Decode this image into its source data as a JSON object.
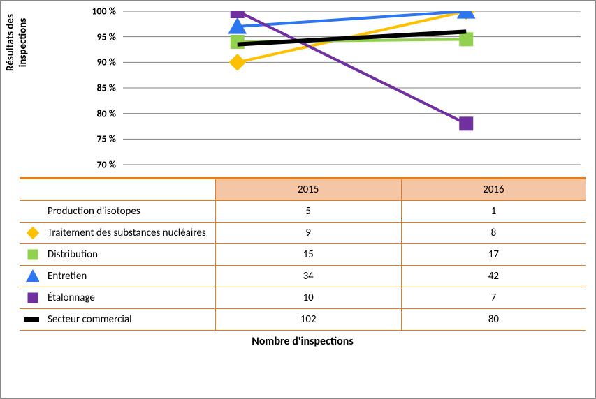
{
  "chart": {
    "type": "line+table",
    "y_axis_title": "Résultats des inspections",
    "x_caption": "Nombre d'inspections",
    "ylim": [
      70,
      100
    ],
    "ytick_step": 5,
    "yticks": [
      70,
      75,
      80,
      85,
      90,
      95,
      100
    ],
    "ytick_labels": [
      "70 %",
      "75 %",
      "80 %",
      "85 %",
      "90 %",
      "95 %",
      "100 %"
    ],
    "years": [
      "2015",
      "2016"
    ],
    "x_positions": [
      0.25,
      0.75
    ],
    "grid_color": "#808080",
    "background_color": "#ffffff",
    "border_color": "#888888",
    "line_width": 4,
    "marker_size": 16,
    "title_fontsize": 15,
    "tick_fontsize": 14
  },
  "series": [
    {
      "name": "Production d'isotopes",
      "label": "Production d'isotopes",
      "color": null,
      "marker": null,
      "chart_values": null,
      "table_values": [
        "5",
        "1"
      ]
    },
    {
      "name": "Traitement des substances nucléaires",
      "label": "Traitement des substances nucléaires",
      "color": "#ffc000",
      "marker": "diamond",
      "chart_values": [
        90,
        100
      ],
      "table_values": [
        "9",
        "8"
      ]
    },
    {
      "name": "Distribution",
      "label": "Distribution",
      "color": "#92d050",
      "marker": "square",
      "chart_values": [
        94,
        94.5
      ],
      "table_values": [
        "15",
        "17"
      ]
    },
    {
      "name": "Entretien",
      "label": "Entretien",
      "color": "#2e75f0",
      "marker": "triangle",
      "chart_values": [
        97,
        100
      ],
      "table_values": [
        "34",
        "42"
      ]
    },
    {
      "name": "Étalonnage",
      "label": "Étalonnage",
      "color": "#7030a0",
      "marker": "square",
      "chart_values": [
        100,
        78
      ],
      "table_values": [
        "10",
        "7"
      ]
    },
    {
      "name": "Secteur commercial",
      "label": "Secteur commercial",
      "color": "#000000",
      "marker": "thickline",
      "chart_values": [
        93.5,
        96
      ],
      "table_values": [
        "102",
        "80"
      ]
    }
  ],
  "table": {
    "header_bg": "#f4c6a6",
    "border_color": "#e87c1a"
  }
}
